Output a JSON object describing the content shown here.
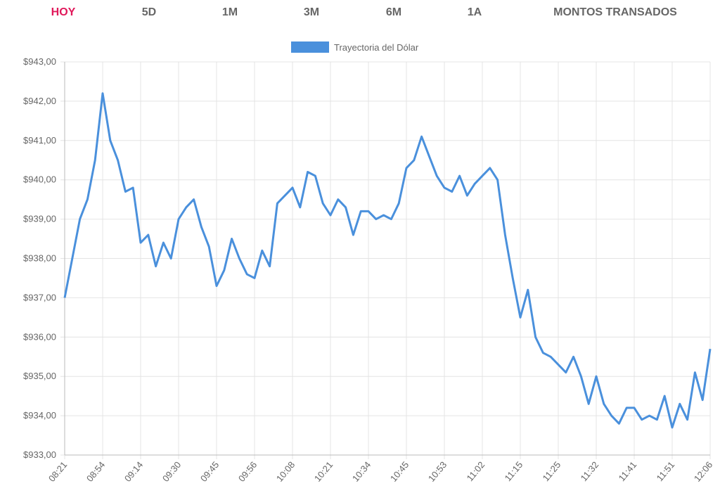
{
  "tabs": [
    "HOY",
    "5D",
    "1M",
    "3M",
    "6M",
    "1A",
    "MONTOS TRANSADOS"
  ],
  "active_tab": 0,
  "chart_data": {
    "type": "line",
    "categories": [
      "08:21",
      null,
      null,
      null,
      null,
      "08:54",
      null,
      null,
      null,
      null,
      "09:14",
      null,
      null,
      null,
      null,
      "09:30",
      null,
      null,
      null,
      null,
      "09:45",
      null,
      null,
      null,
      null,
      "09:56",
      null,
      null,
      null,
      null,
      "10:08",
      null,
      null,
      null,
      null,
      "10:21",
      null,
      null,
      null,
      null,
      "10:34",
      null,
      null,
      null,
      null,
      "10:45",
      null,
      null,
      null,
      null,
      "10:53",
      null,
      null,
      null,
      null,
      "11:02",
      null,
      null,
      null,
      null,
      "11:15",
      null,
      null,
      null,
      null,
      "11:25",
      null,
      null,
      null,
      null,
      "11:32",
      null,
      null,
      null,
      null,
      "11:41",
      null,
      null,
      null,
      null,
      "11:51",
      null,
      null,
      null,
      null,
      "12:06"
    ],
    "series": [
      {
        "name": "Trayectoria del Dólar",
        "color": "#4a90dc",
        "values": [
          937.0,
          938.0,
          939.0,
          939.5,
          940.5,
          942.2,
          941.0,
          940.5,
          939.7,
          939.8,
          938.4,
          938.6,
          937.8,
          938.4,
          938.0,
          939.0,
          939.3,
          939.5,
          938.8,
          938.3,
          937.3,
          937.7,
          938.5,
          938.0,
          937.6,
          937.5,
          938.2,
          937.8,
          939.4,
          939.6,
          939.8,
          939.3,
          940.2,
          940.1,
          939.4,
          939.1,
          939.5,
          939.3,
          938.6,
          939.2,
          939.2,
          939.0,
          939.1,
          939.0,
          939.4,
          940.3,
          940.5,
          941.1,
          940.6,
          940.1,
          939.8,
          939.7,
          940.1,
          939.6,
          939.9,
          940.1,
          940.3,
          940.0,
          938.6,
          937.5,
          936.5,
          937.2,
          936.0,
          935.6,
          935.5,
          935.3,
          935.1,
          935.5,
          935.0,
          934.3,
          935.0,
          934.3,
          934.0,
          933.8,
          934.2,
          934.2,
          933.9,
          934.0,
          933.9,
          934.5,
          933.7,
          934.3,
          933.9,
          935.1,
          934.4,
          935.7
        ]
      }
    ],
    "ylim": [
      933,
      943
    ],
    "yticks": [
      {
        "value": 933,
        "label": "$933,00"
      },
      {
        "value": 934,
        "label": "$934,00"
      },
      {
        "value": 935,
        "label": "$935,00"
      },
      {
        "value": 936,
        "label": "$936,00"
      },
      {
        "value": 937,
        "label": "$937,00"
      },
      {
        "value": 938,
        "label": "$938,00"
      },
      {
        "value": 939,
        "label": "$939,00"
      },
      {
        "value": 940,
        "label": "$940,00"
      },
      {
        "value": 941,
        "label": "$941,00"
      },
      {
        "value": 942,
        "label": "$942,00"
      },
      {
        "value": 943,
        "label": "$943,00"
      }
    ],
    "grid": true,
    "legend": "top"
  }
}
